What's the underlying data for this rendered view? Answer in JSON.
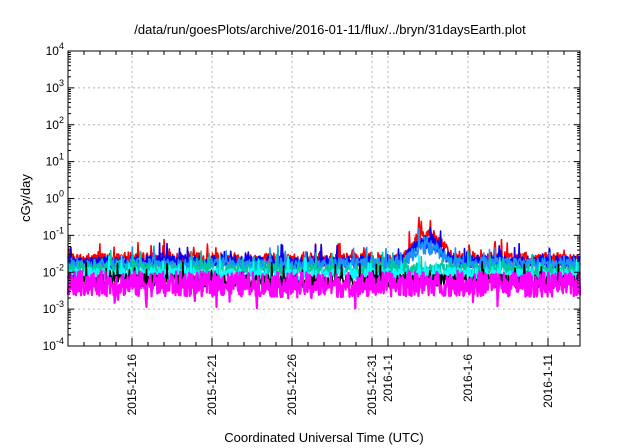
{
  "chart_data": {
    "type": "line",
    "title": "/data/run/goesPlots/archive/2016-01-11/flux/../bryn/31daysEarth.plot",
    "xlabel": "Coordinated Universal Time (UTC)",
    "ylabel": "cGy/day",
    "yscale": "log",
    "ylim": [
      0.0001,
      10000
    ],
    "xlim": [
      "2015-12-12",
      "2016-01-13"
    ],
    "grid": true,
    "y_ticks": [
      {
        "base": "10",
        "exp": "-4"
      },
      {
        "base": "10",
        "exp": "-3"
      },
      {
        "base": "10",
        "exp": "-2"
      },
      {
        "base": "10",
        "exp": "-1"
      },
      {
        "base": "10",
        "exp": "0"
      },
      {
        "base": "10",
        "exp": "1"
      },
      {
        "base": "10",
        "exp": "2"
      },
      {
        "base": "10",
        "exp": "3"
      },
      {
        "base": "10",
        "exp": "4"
      }
    ],
    "x_ticks": [
      {
        "date": "2015-12-16",
        "label": "2015-12-16"
      },
      {
        "date": "2015-12-21",
        "label": "2015-12-21"
      },
      {
        "date": "2015-12-26",
        "label": "2015-12-26"
      },
      {
        "date": "2015-12-31",
        "label": "2015-12-31"
      },
      {
        "date": "2016-01-01",
        "label": "2016-1-1"
      },
      {
        "date": "2016-01-06",
        "label": "2016-1-6"
      },
      {
        "date": "2016-01-11",
        "label": "2016-1-11"
      }
    ],
    "series": [
      {
        "color": "#ff0000",
        "level": 0.022,
        "points": [
          [
            "2015-12-12",
            0.022
          ],
          [
            "2015-12-20",
            0.024
          ],
          [
            "2015-12-28",
            0.022
          ],
          [
            "2016-01-02",
            0.023
          ],
          [
            "2016-01-03",
            0.11
          ],
          [
            "2016-01-04",
            0.09
          ],
          [
            "2016-01-05",
            0.025
          ],
          [
            "2016-01-13",
            0.022
          ]
        ]
      },
      {
        "color": "#0000ff",
        "level": 0.018,
        "points": [
          [
            "2015-12-12",
            0.018
          ],
          [
            "2015-12-20",
            0.02
          ],
          [
            "2015-12-28",
            0.018
          ],
          [
            "2016-01-02",
            0.02
          ],
          [
            "2016-01-03",
            0.07
          ],
          [
            "2016-01-04",
            0.055
          ],
          [
            "2016-01-05",
            0.02
          ],
          [
            "2016-01-13",
            0.018
          ]
        ]
      },
      {
        "color": "#1e90ff",
        "level": 0.016,
        "points": [
          [
            "2015-12-12",
            0.016
          ],
          [
            "2015-12-20",
            0.017
          ],
          [
            "2015-12-28",
            0.016
          ],
          [
            "2016-01-02",
            0.017
          ],
          [
            "2016-01-03",
            0.05
          ],
          [
            "2016-01-04",
            0.04
          ],
          [
            "2016-01-05",
            0.017
          ],
          [
            "2016-01-13",
            0.016
          ]
        ]
      },
      {
        "color": "#00c8a0",
        "level": 0.012,
        "points": [
          [
            "2015-12-12",
            0.012
          ],
          [
            "2015-12-20",
            0.012
          ],
          [
            "2015-12-28",
            0.011
          ],
          [
            "2016-01-05",
            0.012
          ],
          [
            "2016-01-13",
            0.011
          ]
        ]
      },
      {
        "color": "#00ffff",
        "level": 0.009,
        "points": [
          [
            "2015-12-12",
            0.009
          ],
          [
            "2015-12-20",
            0.009
          ],
          [
            "2015-12-28",
            0.008
          ],
          [
            "2016-01-05",
            0.009
          ],
          [
            "2016-01-13",
            0.008
          ]
        ]
      },
      {
        "color": "#000000",
        "level": 0.006,
        "points": [
          [
            "2015-12-12",
            0.006
          ],
          [
            "2015-12-20",
            0.006
          ],
          [
            "2015-12-28",
            0.0055
          ],
          [
            "2016-01-05",
            0.006
          ],
          [
            "2016-01-13",
            0.0055
          ]
        ]
      },
      {
        "color": "#ff00ff",
        "level": 0.005,
        "points": [
          [
            "2015-12-12",
            0.005
          ],
          [
            "2015-12-20",
            0.0048
          ],
          [
            "2015-12-28",
            0.0045
          ],
          [
            "2016-01-05",
            0.005
          ],
          [
            "2016-01-13",
            0.0045
          ]
        ]
      }
    ]
  }
}
